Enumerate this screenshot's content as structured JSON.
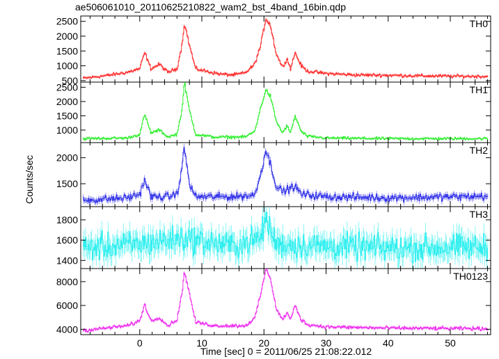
{
  "title": "ae506061010_20110625210822_wam2_bst_4band_16bin.qdp",
  "chart_data": {
    "type": "line",
    "title": "ae506061010_20110625210822_wam2_bst_4band_16bin.qdp",
    "xlabel": "Time [sec] 0 = 2011/06/25 21:08:22.012",
    "ylabel": "Counts/sec",
    "xlim": [
      -9.5,
      56.5
    ],
    "x_ticks": [
      0,
      10,
      20,
      30,
      40,
      50
    ],
    "grid": false,
    "legend": "none",
    "panels": [
      {
        "name": "TH0",
        "color": "#ff2222",
        "ylim": [
          450,
          2680
        ],
        "y_ticks": [
          500,
          1000,
          1500,
          2000,
          2500
        ],
        "baseline": 650,
        "noise": 45,
        "points": [
          [
            -9,
            580
          ],
          [
            -5,
            680
          ],
          [
            -2,
            780
          ],
          [
            0,
            900
          ],
          [
            0.8,
            1450
          ],
          [
            1.8,
            900
          ],
          [
            3.2,
            1050
          ],
          [
            4.5,
            780
          ],
          [
            6,
            900
          ],
          [
            6.8,
            1700
          ],
          [
            7.2,
            2450
          ],
          [
            8,
            1700
          ],
          [
            9,
            900
          ],
          [
            11,
            800
          ],
          [
            13,
            720
          ],
          [
            15,
            690
          ],
          [
            17,
            760
          ],
          [
            18.5,
            1050
          ],
          [
            19.5,
            1700
          ],
          [
            20.3,
            2600
          ],
          [
            21,
            2400
          ],
          [
            22,
            1400
          ],
          [
            23,
            950
          ],
          [
            23.7,
            1250
          ],
          [
            24.3,
            900
          ],
          [
            25,
            1450
          ],
          [
            26,
            1000
          ],
          [
            27,
            820
          ],
          [
            30,
            740
          ],
          [
            35,
            690
          ],
          [
            40,
            680
          ],
          [
            45,
            660
          ],
          [
            50,
            650
          ],
          [
            56,
            640
          ]
        ]
      },
      {
        "name": "TH1",
        "color": "#22ee22",
        "ylim": [
          560,
          2680
        ],
        "y_ticks": [
          1000,
          1500,
          2000,
          2500
        ],
        "baseline": 700,
        "noise": 40,
        "points": [
          [
            -9,
            700
          ],
          [
            -2,
            720
          ],
          [
            0,
            850
          ],
          [
            0.8,
            1550
          ],
          [
            1.8,
            900
          ],
          [
            3.2,
            1000
          ],
          [
            4.5,
            760
          ],
          [
            6,
            850
          ],
          [
            6.8,
            1700
          ],
          [
            7.2,
            2650
          ],
          [
            8,
            1700
          ],
          [
            9,
            850
          ],
          [
            12,
            750
          ],
          [
            17,
            760
          ],
          [
            18.5,
            950
          ],
          [
            19.5,
            1800
          ],
          [
            20.3,
            2400
          ],
          [
            21,
            2200
          ],
          [
            22,
            1300
          ],
          [
            23,
            900
          ],
          [
            23.7,
            1150
          ],
          [
            24.3,
            900
          ],
          [
            25,
            1500
          ],
          [
            26,
            950
          ],
          [
            27,
            780
          ],
          [
            30,
            720
          ],
          [
            40,
            700
          ],
          [
            56,
            700
          ]
        ]
      },
      {
        "name": "TH2",
        "color": "#2a2ae8",
        "ylim": [
          1060,
          2290
        ],
        "y_ticks": [
          1500,
          2000
        ],
        "baseline": 1230,
        "noise": 60,
        "points": [
          [
            -9,
            1180
          ],
          [
            -2,
            1230
          ],
          [
            0,
            1300
          ],
          [
            0.8,
            1580
          ],
          [
            1.8,
            1250
          ],
          [
            4.5,
            1250
          ],
          [
            6,
            1300
          ],
          [
            6.8,
            1750
          ],
          [
            7.1,
            2250
          ],
          [
            8,
            1500
          ],
          [
            9,
            1250
          ],
          [
            15,
            1250
          ],
          [
            18.5,
            1280
          ],
          [
            19.5,
            1700
          ],
          [
            20.3,
            2150
          ],
          [
            21,
            1900
          ],
          [
            22,
            1450
          ],
          [
            23,
            1350
          ],
          [
            25,
            1450
          ],
          [
            26,
            1300
          ],
          [
            30,
            1250
          ],
          [
            40,
            1230
          ],
          [
            56,
            1260
          ]
        ]
      },
      {
        "name": "TH3",
        "color": "#22eeee",
        "ylim": [
          1320,
          1930
        ],
        "y_ticks": [
          1400,
          1600,
          1800
        ],
        "baseline": 1530,
        "noise": 110,
        "points": [
          [
            -9,
            1520
          ],
          [
            0,
            1560
          ],
          [
            7,
            1620
          ],
          [
            15,
            1540
          ],
          [
            19.5,
            1620
          ],
          [
            20.3,
            1820
          ],
          [
            21,
            1700
          ],
          [
            22,
            1560
          ],
          [
            30,
            1540
          ],
          [
            40,
            1520
          ],
          [
            56,
            1530
          ]
        ]
      },
      {
        "name": "TH0123",
        "color": "#ee22ee",
        "ylim": [
          3550,
          9100
        ],
        "y_ticks": [
          4000,
          6000,
          8000
        ],
        "baseline": 4100,
        "noise": 120,
        "points": [
          [
            -9,
            3900
          ],
          [
            -2,
            4300
          ],
          [
            0,
            4700
          ],
          [
            0.8,
            6100
          ],
          [
            1.8,
            4700
          ],
          [
            3.2,
            5000
          ],
          [
            4.5,
            4300
          ],
          [
            6,
            4800
          ],
          [
            6.8,
            7000
          ],
          [
            7.2,
            8900
          ],
          [
            8,
            7000
          ],
          [
            9,
            4600
          ],
          [
            12,
            4300
          ],
          [
            17,
            4300
          ],
          [
            18.5,
            4900
          ],
          [
            19.5,
            7000
          ],
          [
            20.3,
            9000
          ],
          [
            21,
            8400
          ],
          [
            22,
            5700
          ],
          [
            23,
            4800
          ],
          [
            23.7,
            5400
          ],
          [
            24.3,
            4800
          ],
          [
            25,
            6000
          ],
          [
            26,
            4800
          ],
          [
            27,
            4400
          ],
          [
            30,
            4200
          ],
          [
            40,
            4100
          ],
          [
            56,
            4050
          ]
        ]
      }
    ]
  }
}
